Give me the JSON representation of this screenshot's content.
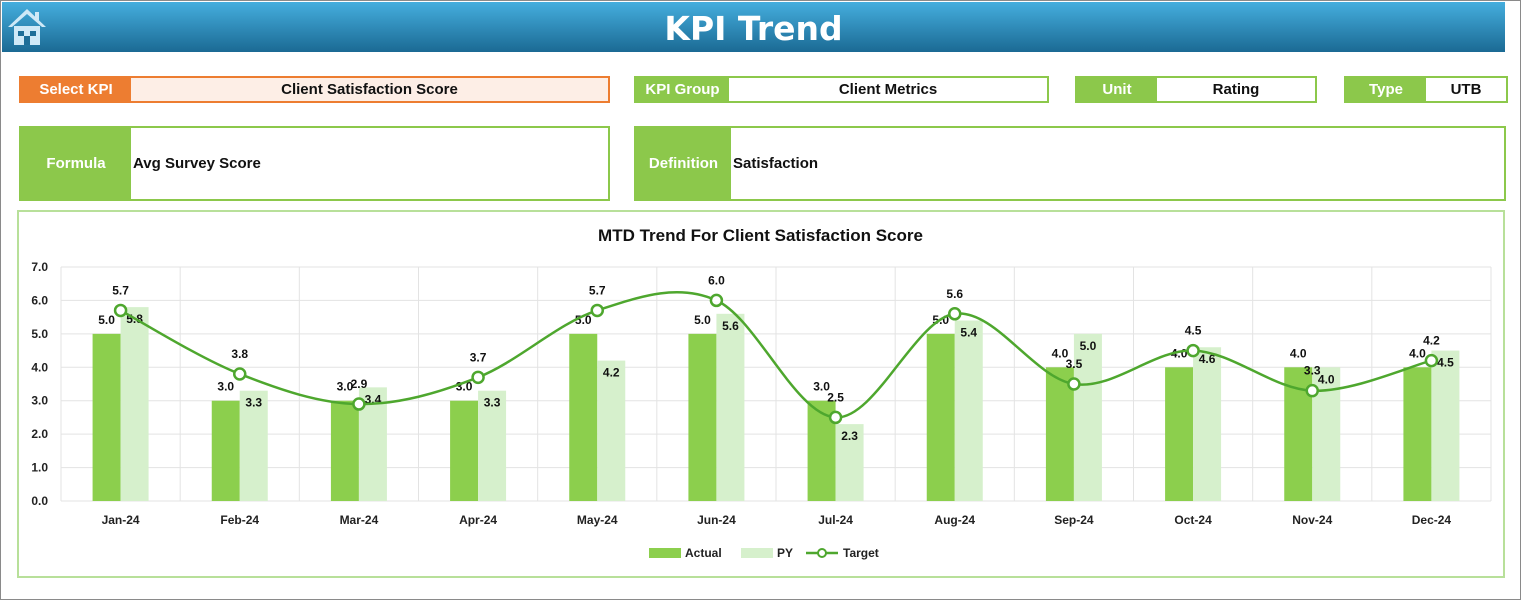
{
  "header": {
    "title": "KPI Trend",
    "home_icon": "home-icon"
  },
  "fields": {
    "select_kpi": {
      "label": "Select KPI",
      "value": "Client Satisfaction Score"
    },
    "kpi_group": {
      "label": "KPI Group",
      "value": "Client Metrics"
    },
    "unit": {
      "label": "Unit",
      "value": "Rating"
    },
    "type": {
      "label": "Type",
      "value": "UTB"
    },
    "formula": {
      "label": "Formula",
      "value": "Avg Survey Score"
    },
    "definition": {
      "label": "Definition",
      "value": "Satisfaction"
    }
  },
  "colors": {
    "header": "#1b6a94",
    "accent_orange": "#ed7d31",
    "green": "#8cc84b",
    "actual": "#8ccf4d",
    "py": "#d6f0cc",
    "target": "#4ea72e"
  },
  "chart_data": {
    "type": "bar",
    "title": "MTD Trend For Client Satisfaction Score",
    "categories": [
      "Jan-24",
      "Feb-24",
      "Mar-24",
      "Apr-24",
      "May-24",
      "Jun-24",
      "Jul-24",
      "Aug-24",
      "Sep-24",
      "Oct-24",
      "Nov-24",
      "Dec-24"
    ],
    "series": [
      {
        "name": "Actual",
        "type": "bar",
        "values": [
          5.0,
          3.0,
          3.0,
          3.0,
          5.0,
          5.0,
          3.0,
          5.0,
          4.0,
          4.0,
          4.0,
          4.0
        ]
      },
      {
        "name": "PY",
        "type": "bar",
        "values": [
          5.8,
          3.3,
          3.4,
          3.3,
          4.2,
          5.6,
          2.3,
          5.4,
          5.0,
          4.6,
          4.0,
          4.5
        ]
      },
      {
        "name": "Target",
        "type": "line",
        "smooth": true,
        "values": [
          5.7,
          3.8,
          2.9,
          3.7,
          5.7,
          6.0,
          2.5,
          5.6,
          3.5,
          4.5,
          3.3,
          4.2
        ]
      }
    ],
    "yticks": [
      "0.0",
      "1.0",
      "2.0",
      "3.0",
      "4.0",
      "5.0",
      "6.0",
      "7.0"
    ],
    "ylim": [
      0,
      7
    ],
    "grid": true,
    "legend": "bottom"
  }
}
